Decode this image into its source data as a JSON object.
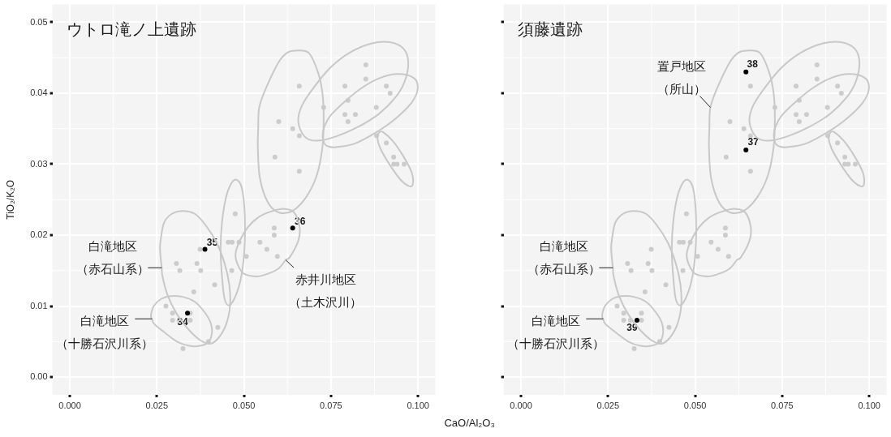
{
  "chart_data": [
    {
      "type": "scatter",
      "title": "ウトロ滝ノ上遺跡",
      "xlabel": "CaO/Al₂O₃",
      "ylabel": "TiO₂/K₂O",
      "xlim": [
        -0.005,
        0.105
      ],
      "ylim": [
        -0.0025,
        0.0525
      ],
      "xticks": [
        {
          "value": 0,
          "label": "0.000"
        },
        {
          "value": 0.025,
          "label": "0.025"
        },
        {
          "value": 0.05,
          "label": "0.050"
        },
        {
          "value": 0.075,
          "label": "0.075"
        },
        {
          "value": 0.1,
          "label": "0.100"
        }
      ],
      "yticks": [
        {
          "value": 0,
          "label": "0.00"
        },
        0.01,
        0.02,
        0.03,
        0.04,
        0.05
      ],
      "grid": true,
      "marker": "circle",
      "series": [
        {
          "type": "scatter",
          "color": "#000000",
          "x": [
            0.0338,
            0.0388,
            0.064
          ],
          "values": [
            0.009,
            0.018,
            0.021
          ]
        },
        {
          "type": "scatter",
          "color": "#cccccc",
          "x": [
            0.0276,
            0.0295,
            0.0346,
            0.0295,
            0.0314,
            0.0346,
            0.0425,
            0.0398,
            0.0325,
            0.0356,
            0.0416,
            0.0306,
            0.0365,
            0.0316,
            0.0376,
            0.0374,
            0.0475,
            0.0455,
            0.0466,
            0.0486,
            0.0465,
            0.0507,
            0.0546,
            0.0587,
            0.0587,
            0.0566,
            0.0596,
            0.0659,
            0.06,
            0.064,
            0.0659,
            0.0589,
            0.0659,
            0.0729,
            0.079,
            0.085,
            0.085,
            0.0909,
            0.092,
            0.0799,
            0.088,
            0.079,
            0.082,
            0.0799,
            0.0881,
            0.0909,
            0.093,
            0.093,
            0.094,
            0.096
          ],
          "values": [
            0.01,
            0.009,
            0.009,
            0.008,
            0.008,
            0.008,
            0.007,
            0.005,
            0.004,
            0.012,
            0.013,
            0.016,
            0.016,
            0.015,
            0.015,
            0.018,
            0.023,
            0.019,
            0.019,
            0.019,
            0.015,
            0.017,
            0.019,
            0.021,
            0.02,
            0.018,
            0.017,
            0.041,
            0.036,
            0.035,
            0.034,
            0.031,
            0.029,
            0.038,
            0.041,
            0.044,
            0.042,
            0.041,
            0.04,
            0.039,
            0.038,
            0.037,
            0.037,
            0.036,
            0.034,
            0.033,
            0.031,
            0.03,
            0.03,
            0.03
          ]
        }
      ],
      "annotations": [
        {
          "text": "34",
          "x": 0.0338,
          "y": 0.009
        },
        {
          "text": "35",
          "x": 0.0388,
          "y": 0.018
        },
        {
          "text": "36",
          "x": 0.064,
          "y": 0.021
        },
        "白滝地区（赤石山系）",
        "白滝地区（十勝石沢川系）",
        "赤井川地区（土木沢川）"
      ]
    },
    {
      "type": "scatter",
      "title": "須藤遺跡",
      "xlim": [
        -0.005,
        0.105
      ],
      "ylim": [
        -0.0025,
        0.0525
      ],
      "xticks": [
        {
          "value": 0,
          "label": "0.000"
        },
        {
          "value": 0.025,
          "label": "0.025"
        },
        {
          "value": 0.05,
          "label": "0.050"
        },
        {
          "value": 0.075,
          "label": "0.075"
        },
        {
          "value": 0.1,
          "label": "0.100"
        }
      ],
      "yticks": [
        0,
        0.01,
        0.02,
        0.03,
        0.04,
        0.05
      ],
      "tick_labels": "x",
      "grid": true,
      "marker": "circle",
      "series": [
        {
          "type": "scatter",
          "color": "#000000",
          "x": [
            0.0646,
            0.0646,
            0.0333
          ],
          "values": [
            0.032,
            0.043,
            0.008
          ]
        },
        {
          "type": "scatter",
          "color": "#cccccc",
          "x": [
            0.0276,
            0.0295,
            0.0346,
            0.0295,
            0.0314,
            0.0346,
            0.0425,
            0.0398,
            0.0325,
            0.0356,
            0.0416,
            0.0306,
            0.0365,
            0.0316,
            0.0376,
            0.0374,
            0.0475,
            0.0455,
            0.0466,
            0.0486,
            0.0465,
            0.0507,
            0.0546,
            0.0587,
            0.0587,
            0.0566,
            0.0596,
            0.0659,
            0.06,
            0.064,
            0.0659,
            0.0589,
            0.0659,
            0.0729,
            0.079,
            0.085,
            0.085,
            0.0909,
            0.092,
            0.0799,
            0.088,
            0.079,
            0.082,
            0.0799,
            0.0881,
            0.0909,
            0.093,
            0.093,
            0.094,
            0.096
          ],
          "values": [
            0.01,
            0.009,
            0.009,
            0.008,
            0.008,
            0.008,
            0.007,
            0.005,
            0.004,
            0.012,
            0.013,
            0.016,
            0.016,
            0.015,
            0.015,
            0.018,
            0.023,
            0.019,
            0.019,
            0.019,
            0.015,
            0.017,
            0.019,
            0.021,
            0.02,
            0.018,
            0.017,
            0.041,
            0.036,
            0.035,
            0.034,
            0.031,
            0.029,
            0.038,
            0.041,
            0.044,
            0.042,
            0.041,
            0.04,
            0.039,
            0.038,
            0.037,
            0.037,
            0.036,
            0.034,
            0.033,
            0.031,
            0.03,
            0.03,
            0.03
          ]
        }
      ],
      "annotations": [
        {
          "text": "37",
          "x": 0.0646,
          "y": 0.032
        },
        {
          "text": "38",
          "x": 0.0646,
          "y": 0.043
        },
        {
          "text": "39",
          "x": 0.0333,
          "y": 0.008
        },
        "置戸地区（所山）",
        "白滝地区（赤石山系）",
        "白滝地区（十勝石沢川系）"
      ]
    }
  ]
}
